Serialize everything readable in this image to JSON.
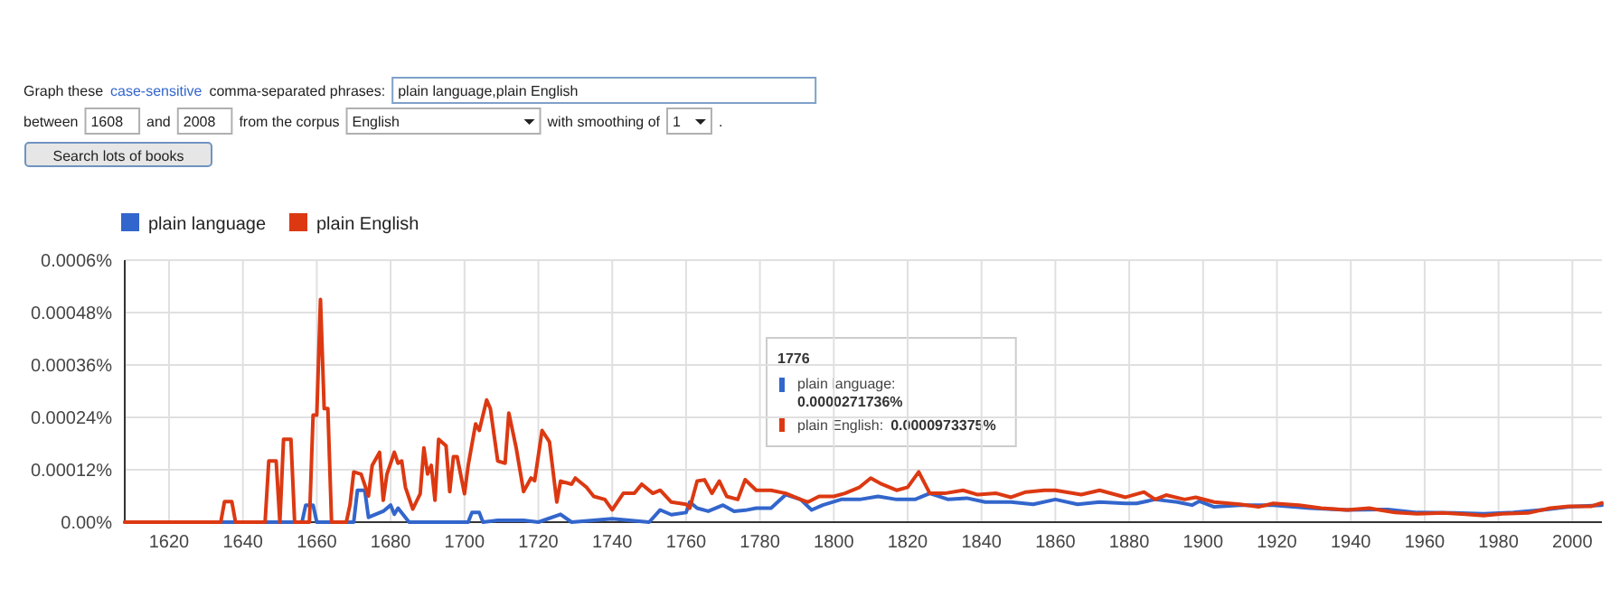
{
  "chart_data": {
    "type": "line",
    "xlim": [
      1608,
      2008
    ],
    "xticks": [
      1620,
      1640,
      1660,
      1680,
      1700,
      1720,
      1740,
      1760,
      1780,
      1800,
      1820,
      1840,
      1860,
      1880,
      1900,
      1920,
      1940,
      1960,
      1980,
      2000
    ],
    "ylim": [
      0,
      0.0006
    ],
    "yticks": [
      {
        "value": 0,
        "label": "0.00%"
      },
      {
        "value": 0.00012,
        "label": "0.00012%"
      },
      {
        "value": 0.00024,
        "label": "0.00024%"
      },
      {
        "value": 0.00036,
        "label": "0.00036%"
      },
      {
        "value": 0.00048,
        "label": "0.00048%"
      },
      {
        "value": 0.0006,
        "label": "0.0006%"
      }
    ],
    "grid": true,
    "legend": "top left",
    "series": [
      {
        "name": "plain language",
        "color": "#3366cc",
        "x": [
          1608,
          1656,
          1657,
          1659,
          1660,
          1670,
          1671,
          1673,
          1674,
          1678,
          1680,
          1681,
          1682,
          1685,
          1701,
          1702,
          1704,
          1705,
          1709,
          1716,
          1720,
          1726,
          1729,
          1740,
          1750,
          1753,
          1756,
          1760,
          1761,
          1763,
          1766,
          1770,
          1773,
          1776,
          1779,
          1783,
          1787,
          1791,
          1794,
          1797,
          1802,
          1807,
          1812,
          1817,
          1822,
          1826,
          1831,
          1836,
          1841,
          1848,
          1854,
          1860,
          1866,
          1872,
          1879,
          1882,
          1887,
          1893,
          1897,
          1899,
          1903,
          1910,
          1919,
          1929,
          1939,
          1950,
          1958,
          1968,
          1976,
          1984,
          1993,
          1999,
          2008
        ],
        "values": [
          0,
          0,
          3.9e-05,
          3.9e-05,
          0,
          0,
          7.3e-05,
          7.3e-05,
          1.1e-05,
          2.5e-05,
          3.9e-05,
          1.8e-05,
          3.2e-05,
          0,
          0,
          2.2e-05,
          2.2e-05,
          0,
          4e-06,
          4e-06,
          0,
          1.8e-05,
          0,
          8e-06,
          0,
          2.8e-05,
          1.7e-05,
          2.2e-05,
          4.6e-05,
          3.2e-05,
          2.5e-05,
          3.9e-05,
          2.5e-05,
          2.72e-05,
          3.2e-05,
          3.2e-05,
          6.3e-05,
          5.2e-05,
          2.8e-05,
          3.9e-05,
          5.2e-05,
          5.2e-05,
          5.9e-05,
          5.2e-05,
          5.2e-05,
          6.6e-05,
          5.2e-05,
          5.5e-05,
          4.6e-05,
          4.6e-05,
          4.1e-05,
          5.2e-05,
          4.1e-05,
          4.6e-05,
          4.3e-05,
          4.3e-05,
          5.2e-05,
          4.6e-05,
          3.9e-05,
          4.8e-05,
          3.5e-05,
          3.9e-05,
          3.9e-05,
          3.2e-05,
          2.8e-05,
          2.9e-05,
          2.2e-05,
          2.1e-05,
          1.9e-05,
          2.2e-05,
          2.9e-05,
          3.5e-05,
          3.9e-05
        ]
      },
      {
        "name": "plain English",
        "color": "#dc3912",
        "x": [
          1608,
          1634,
          1635,
          1637,
          1638,
          1646,
          1647,
          1649,
          1650,
          1651,
          1653,
          1654,
          1658,
          1659,
          1660,
          1661,
          1662,
          1663,
          1664,
          1668,
          1669,
          1670,
          1672,
          1674,
          1675,
          1677,
          1678,
          1679,
          1681,
          1682,
          1683,
          1684,
          1686,
          1688,
          1689,
          1690,
          1691,
          1692,
          1693,
          1695,
          1696,
          1697,
          1698,
          1700,
          1701,
          1703,
          1704,
          1706,
          1707,
          1709,
          1711,
          1712,
          1714,
          1716,
          1718,
          1719,
          1721,
          1723,
          1725,
          1726,
          1729,
          1730,
          1733,
          1735,
          1738,
          1740,
          1743,
          1746,
          1748,
          1751,
          1753,
          1756,
          1760,
          1761,
          1763,
          1765,
          1767,
          1769,
          1771,
          1774,
          1776,
          1779,
          1783,
          1787,
          1791,
          1793,
          1796,
          1800,
          1803,
          1807,
          1810,
          1813,
          1817,
          1820,
          1823,
          1826,
          1830,
          1835,
          1839,
          1844,
          1848,
          1852,
          1857,
          1860,
          1867,
          1872,
          1879,
          1884,
          1887,
          1890,
          1895,
          1898,
          1903,
          1910,
          1915,
          1919,
          1926,
          1932,
          1939,
          1945,
          1952,
          1958,
          1965,
          1971,
          1976,
          1981,
          1988,
          1994,
          1999,
          2005,
          2008
        ],
        "values": [
          0,
          0,
          4.7e-05,
          4.7e-05,
          0,
          0,
          0.00014,
          0.00014,
          0,
          0.00019,
          0.00019,
          0,
          0,
          0.000245,
          0.000245,
          0.00051,
          0.00026,
          0.00026,
          0,
          0,
          4e-05,
          0.000115,
          0.00011,
          6e-05,
          0.00013,
          0.00016,
          5e-05,
          0.00011,
          0.00016,
          0.000135,
          0.00014,
          8e-05,
          3e-05,
          6.5e-05,
          0.00017,
          0.00011,
          0.00013,
          5e-05,
          0.00019,
          0.000175,
          7e-05,
          0.00015,
          0.00015,
          6.5e-05,
          0.00013,
          0.000225,
          0.00021,
          0.00028,
          0.00026,
          0.00014,
          0.000135,
          0.00025,
          0.00017,
          7e-05,
          0.000101,
          9.5e-05,
          0.00021,
          0.000184,
          4.6e-05,
          9.4e-05,
          8.7e-05,
          0.000101,
          8e-05,
          5.9e-05,
          5.2e-05,
          2.8e-05,
          6.6e-05,
          6.6e-05,
          8.7e-05,
          6.6e-05,
          7.3e-05,
          4.6e-05,
          4.1e-05,
          3.2e-05,
          9.4e-05,
          9.7e-05,
          6.6e-05,
          9.4e-05,
          5.9e-05,
          5.2e-05,
          9.73e-05,
          7.3e-05,
          7.3e-05,
          6.6e-05,
          5.2e-05,
          4.6e-05,
          5.9e-05,
          5.9e-05,
          6.6e-05,
          8e-05,
          0.000101,
          8.7e-05,
          7.3e-05,
          8e-05,
          0.000115,
          6.6e-05,
          6.6e-05,
          7.3e-05,
          6.3e-05,
          6.6e-05,
          5.7e-05,
          6.9e-05,
          7.3e-05,
          7.3e-05,
          6.3e-05,
          7.3e-05,
          5.7e-05,
          6.9e-05,
          5.2e-05,
          6.2e-05,
          5.2e-05,
          5.7e-05,
          4.6e-05,
          4.1e-05,
          3.5e-05,
          4.3e-05,
          3.9e-05,
          3.2e-05,
          2.8e-05,
          3.2e-05,
          2.2e-05,
          1.9e-05,
          2.1e-05,
          1.8e-05,
          1.5e-05,
          1.9e-05,
          2.1e-05,
          3.2e-05,
          3.6e-05,
          3.6e-05,
          4.4e-05
        ]
      }
    ],
    "annotations": [
      "Graph these",
      "case-sensitive",
      "comma-separated phrases:",
      "plain language,plain English",
      "between",
      "1608",
      "and",
      "2008",
      "from the corpus",
      "English",
      "with smoothing of",
      "1",
      ".",
      "Search lots of books",
      "1776",
      "plain language:",
      "0.0000271736%",
      "plain English:",
      "0.0000973375%"
    ]
  }
}
